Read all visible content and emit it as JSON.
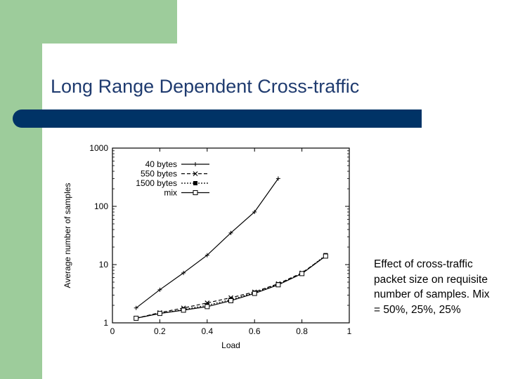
{
  "slide": {
    "title": "Long Range Dependent Cross-traffic",
    "caption": "Effect of cross-traffic packet size on requisite number of samples. Mix = 50%, 25%, 25%",
    "colors": {
      "green": "#9dcc9b",
      "navy": "#003366",
      "title_text": "#1f3b6f"
    }
  },
  "chart_data": {
    "type": "line",
    "xlabel": "Load",
    "ylabel": "Average number of samples",
    "xlim": [
      0,
      1
    ],
    "ylim": [
      1,
      1000
    ],
    "yscale": "log",
    "x_ticks": [
      "0",
      "0.2",
      "0.4",
      "0.6",
      "0.8",
      "1"
    ],
    "y_ticks": [
      "1",
      "10",
      "100",
      "1000"
    ],
    "legend_position": "top-left",
    "grid": false,
    "series": [
      {
        "name": "40 bytes",
        "marker": "plus",
        "dash": "solid",
        "x": [
          0.1,
          0.2,
          0.3,
          0.4,
          0.5,
          0.6,
          0.7
        ],
        "y": [
          1.8,
          3.7,
          7.2,
          14.5,
          35,
          80,
          300
        ]
      },
      {
        "name": "550 bytes",
        "marker": "x",
        "dash": "dashed",
        "x": [
          0.1,
          0.2,
          0.3,
          0.4,
          0.5,
          0.6,
          0.7,
          0.8,
          0.9
        ],
        "y": [
          1.2,
          1.5,
          1.8,
          2.2,
          2.7,
          3.4,
          4.7,
          7.2,
          14
        ]
      },
      {
        "name": "1500 bytes",
        "marker": "filled-square",
        "dash": "dotted",
        "x": [
          0.1,
          0.2,
          0.3,
          0.4,
          0.5,
          0.6,
          0.7,
          0.8,
          0.9
        ],
        "y": [
          1.2,
          1.45,
          1.7,
          2.0,
          2.5,
          3.3,
          4.6,
          7.0,
          14.5
        ]
      },
      {
        "name": "mix",
        "marker": "open-square",
        "dash": "solid",
        "x": [
          0.1,
          0.2,
          0.3,
          0.4,
          0.5,
          0.6,
          0.7,
          0.8,
          0.9
        ],
        "y": [
          1.2,
          1.45,
          1.65,
          1.9,
          2.4,
          3.2,
          4.5,
          7.0,
          14.0
        ]
      }
    ]
  }
}
